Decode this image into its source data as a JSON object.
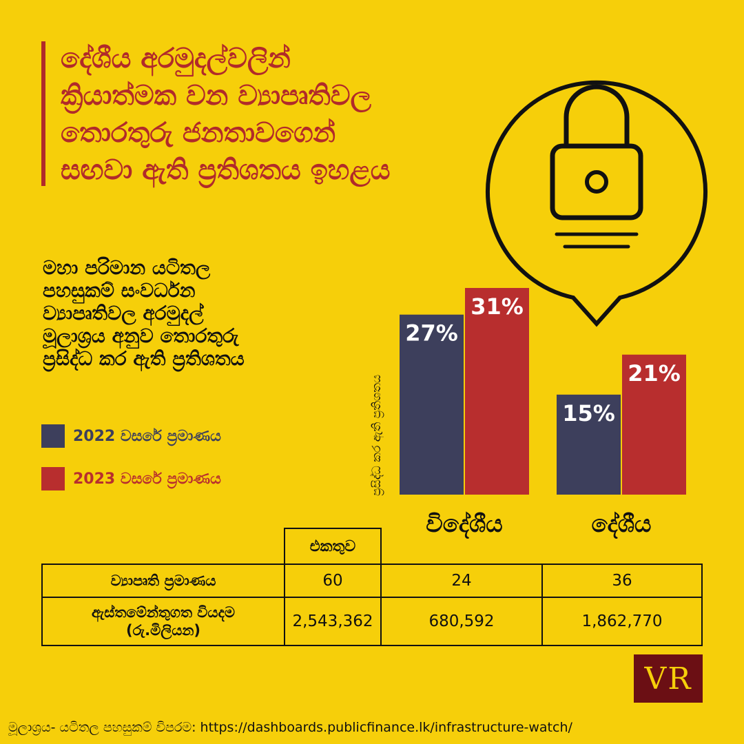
{
  "title": {
    "lines": [
      "දේශීය අරමුදල්වලින්",
      "ක්‍රියාත්මක වන ව්‍යාපෘතිවල",
      "තොරතුරු ජනතාවගෙන්",
      "සඟවා ඇති ප්‍රතිශතය ඉහළය"
    ]
  },
  "subtitle": {
    "lines": [
      "මහා පරිමාන යටිතල",
      "පහසුකම් සංවර්ධන",
      "ව්‍යාපෘතිවල අරමුදල්",
      "මූලාශ්‍රය අනුව තොරතුරු",
      "ප්‍රසිද්ධ කර ඇති ප්‍රතිශතය"
    ]
  },
  "icon": "padlock-pin-icon",
  "colors": {
    "background": "#f6cf0a",
    "accent": "#b12a2a",
    "series_2022": "#3d3f5c",
    "series_2023": "#b82e2e",
    "logo_bg": "#6b0f14"
  },
  "chart_data": {
    "type": "bar",
    "categories": [
      "විදේශීය",
      "දේශීය"
    ],
    "series": [
      {
        "name": "2022 වසරේ ප්‍රමාණය",
        "values": [
          27,
          15
        ],
        "labels": [
          "27%",
          "15%"
        ],
        "color": "#3d3f5c"
      },
      {
        "name": "2023 වසරේ ප්‍රමාණය",
        "values": [
          31,
          21
        ],
        "labels": [
          "31%",
          "21%"
        ],
        "color": "#b82e2e"
      }
    ],
    "ylabel": "ප්‍රසිද්ධ කර ඇති ප්‍රතිශතය",
    "ylim": [
      0,
      31
    ],
    "grid": false,
    "legend": "left"
  },
  "table": {
    "columns": [
      "එකතුව",
      "විදේශීය",
      "දේශීය"
    ],
    "rows": [
      {
        "label": "ව්‍යාපෘති ප්‍රමාණය",
        "values": [
          "60",
          "24",
          "36"
        ]
      },
      {
        "label_lines": [
          "ඇස්තමේන්තුගත වියදම",
          "(රු.මිලියන)"
        ],
        "values": [
          "2,543,362",
          "680,592",
          "1,862,770"
        ]
      }
    ]
  },
  "logo": {
    "text": "VR"
  },
  "source": "මූලාශ්‍රය- යටිතල පහසුකම් විපරම: https://dashboards.publicfinance.lk/infrastructure-watch/"
}
